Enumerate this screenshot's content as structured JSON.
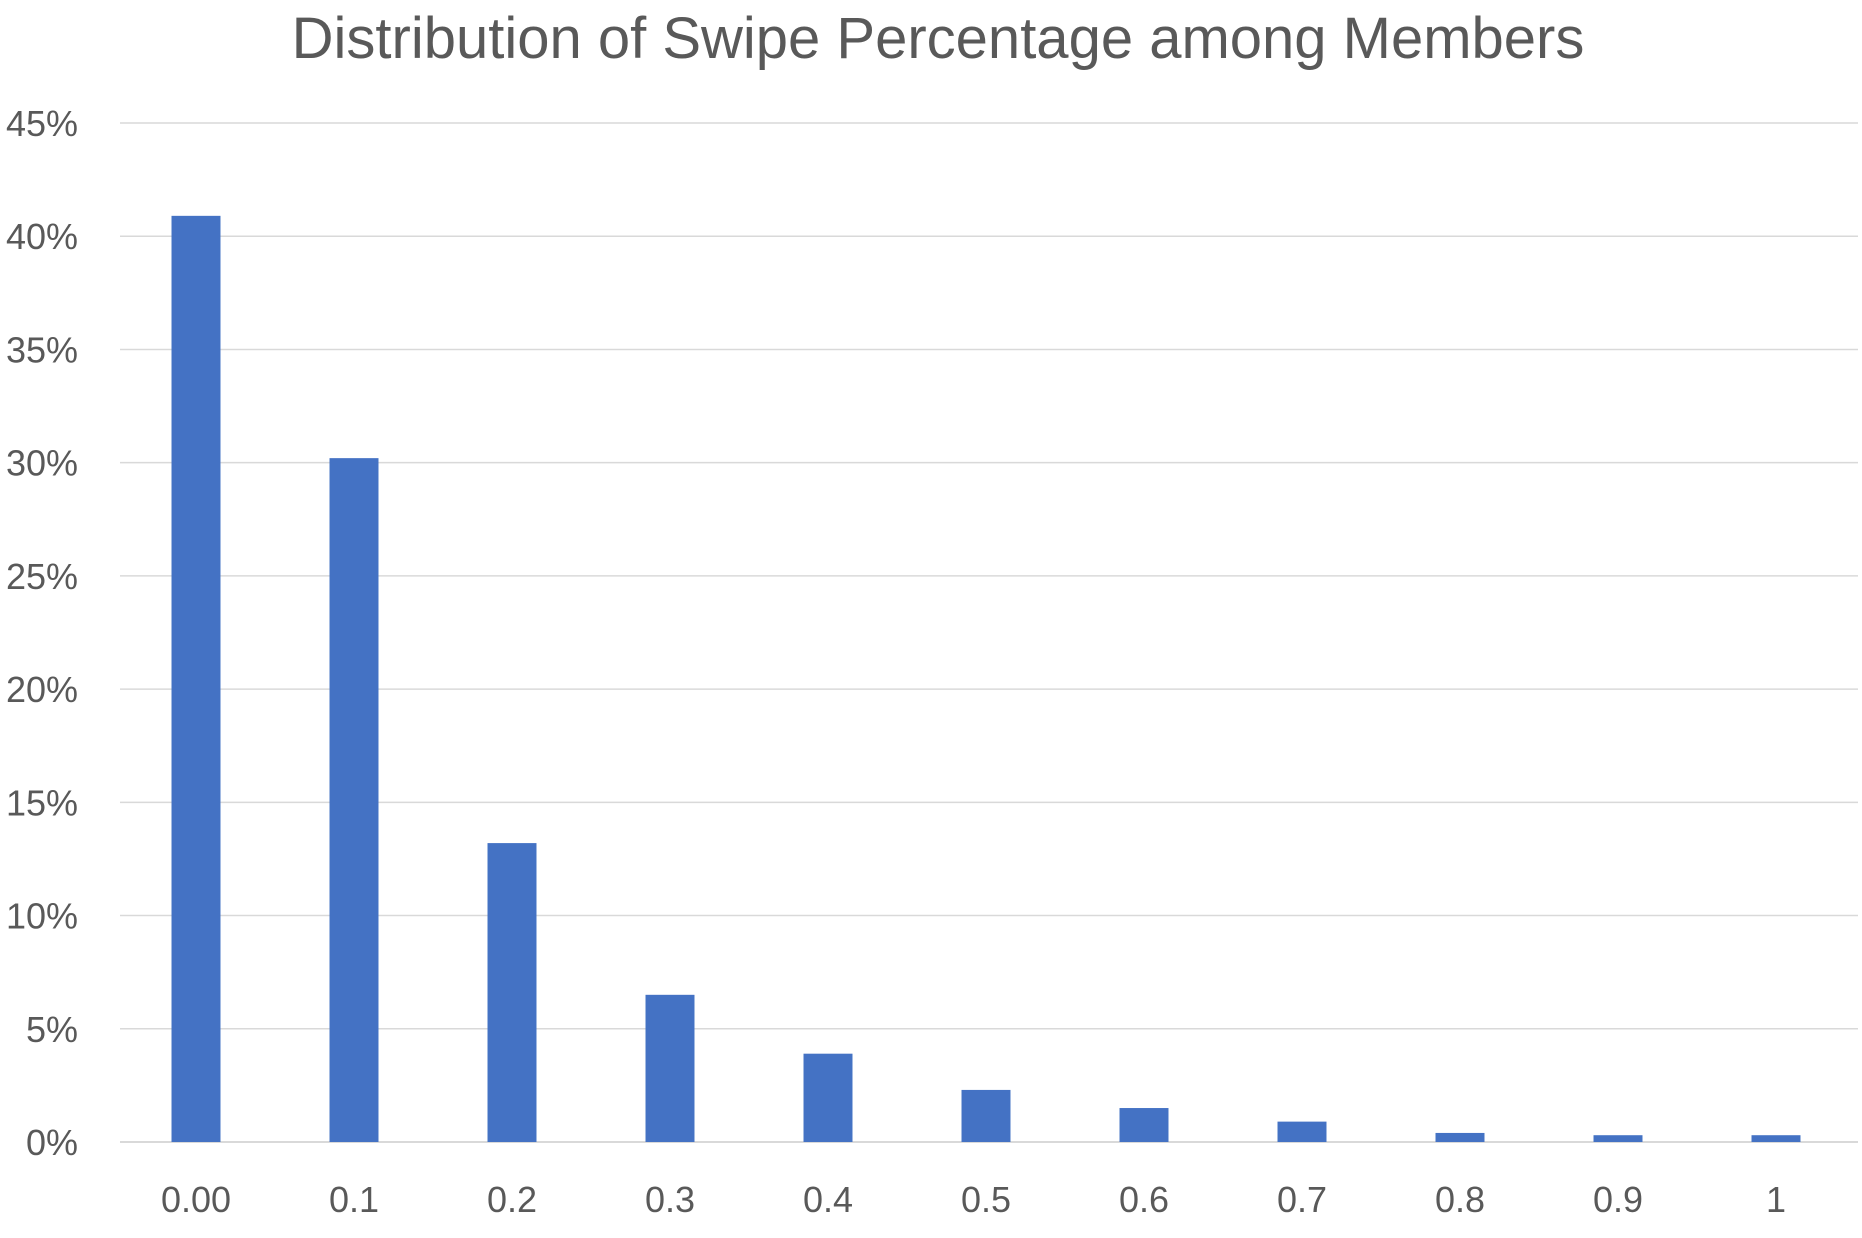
{
  "chart_data": {
    "type": "bar",
    "title": "Distribution of Swipe Percentage among Members",
    "xlabel": "",
    "ylabel": "",
    "categories": [
      "0.00",
      "0.1",
      "0.2",
      "0.3",
      "0.4",
      "0.5",
      "0.6",
      "0.7",
      "0.8",
      "0.9",
      "1"
    ],
    "values": [
      0.409,
      0.302,
      0.132,
      0.065,
      0.039,
      0.023,
      0.015,
      0.009,
      0.004,
      0.003,
      0.003
    ],
    "ylim": [
      0,
      0.45
    ],
    "yticks": [
      0,
      0.05,
      0.1,
      0.15,
      0.2,
      0.25,
      0.3,
      0.35,
      0.4,
      0.45
    ],
    "ytick_labels": [
      "0%",
      "5%",
      "10%",
      "15%",
      "20%",
      "25%",
      "30%",
      "35%",
      "40%",
      "45%"
    ],
    "grid": true,
    "legend": "none",
    "colors": {
      "bar": "#4472C4",
      "grid": "#D9D9D9",
      "text": "#595959",
      "title": "#595959"
    }
  }
}
